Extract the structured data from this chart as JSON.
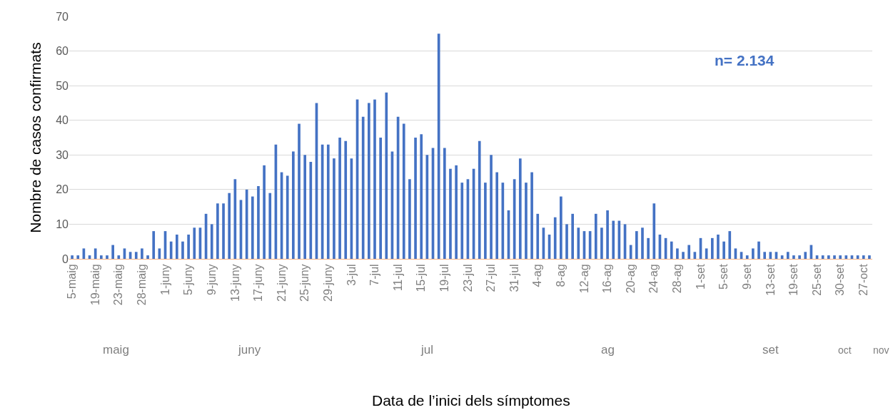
{
  "chart_data": {
    "type": "bar",
    "ylabel": "Nombre de casos confirmats",
    "categories": [
      "5-maig",
      null,
      null,
      null,
      "19-maig",
      null,
      null,
      null,
      "23-maig",
      null,
      null,
      null,
      "28-maig",
      null,
      null,
      null,
      "1-juny",
      null,
      null,
      null,
      "5-juny",
      null,
      null,
      null,
      "9-juny",
      null,
      null,
      null,
      "13-juny",
      null,
      null,
      null,
      "17-juny",
      null,
      null,
      null,
      "21-juny",
      null,
      null,
      null,
      "25-juny",
      null,
      null,
      null,
      "29-juny",
      null,
      null,
      null,
      "3-jul",
      null,
      null,
      null,
      "7-jul",
      null,
      null,
      null,
      "11-jul",
      null,
      null,
      null,
      "15-jul",
      null,
      null,
      null,
      "19-jul",
      null,
      null,
      null,
      "23-jul",
      null,
      null,
      null,
      "27-jul",
      null,
      null,
      null,
      "31-jul",
      null,
      null,
      null,
      "4-ag",
      null,
      null,
      null,
      "8-ag",
      null,
      null,
      null,
      "12-ag",
      null,
      null,
      null,
      "16-ag",
      null,
      null,
      null,
      "20-ag",
      null,
      null,
      null,
      "24-ag",
      null,
      null,
      null,
      "28-ag",
      null,
      null,
      null,
      "1-set",
      null,
      null,
      null,
      "5-set",
      null,
      null,
      null,
      "9-set",
      null,
      null,
      null,
      "13-set",
      null,
      null,
      null,
      "19-set",
      null,
      null,
      null,
      "25-set",
      null,
      null,
      null,
      "30-set",
      null,
      null,
      null,
      "27-oct",
      null
    ],
    "values": [
      1,
      1,
      3,
      1,
      3,
      1,
      1,
      4,
      1,
      3,
      2,
      2,
      3,
      1,
      8,
      3,
      8,
      5,
      7,
      5,
      7,
      9,
      9,
      13,
      10,
      16,
      16,
      19,
      23,
      17,
      20,
      18,
      21,
      27,
      19,
      33,
      25,
      24,
      31,
      39,
      30,
      28,
      45,
      33,
      33,
      29,
      35,
      34,
      29,
      46,
      41,
      45,
      46,
      35,
      48,
      31,
      41,
      39,
      23,
      35,
      36,
      30,
      32,
      65,
      32,
      26,
      27,
      22,
      23,
      26,
      34,
      22,
      30,
      25,
      22,
      14,
      23,
      29,
      22,
      25,
      13,
      9,
      7,
      12,
      18,
      10,
      13,
      9,
      8,
      8,
      13,
      9,
      14,
      11,
      11,
      10,
      4,
      8,
      9,
      6,
      16,
      7,
      6,
      5,
      3,
      2,
      4,
      2,
      6,
      3,
      6,
      7,
      5,
      8,
      3,
      2,
      1,
      3,
      5,
      2,
      2,
      2,
      1,
      2,
      1,
      1,
      2,
      4,
      1,
      1,
      1,
      1,
      1,
      1,
      1,
      1,
      1,
      1
    ],
    "color": "#4472c4",
    "ylim": [
      0,
      70
    ],
    "yticks": [
      0,
      10,
      20,
      30,
      40,
      50,
      60,
      70
    ],
    "grid": "y",
    "annotations": [
      "n= 2.134",
      "maig",
      "juny",
      "jul",
      "ag",
      "set",
      "oct",
      "nov",
      "Data de l’inici dels símptomes"
    ]
  }
}
